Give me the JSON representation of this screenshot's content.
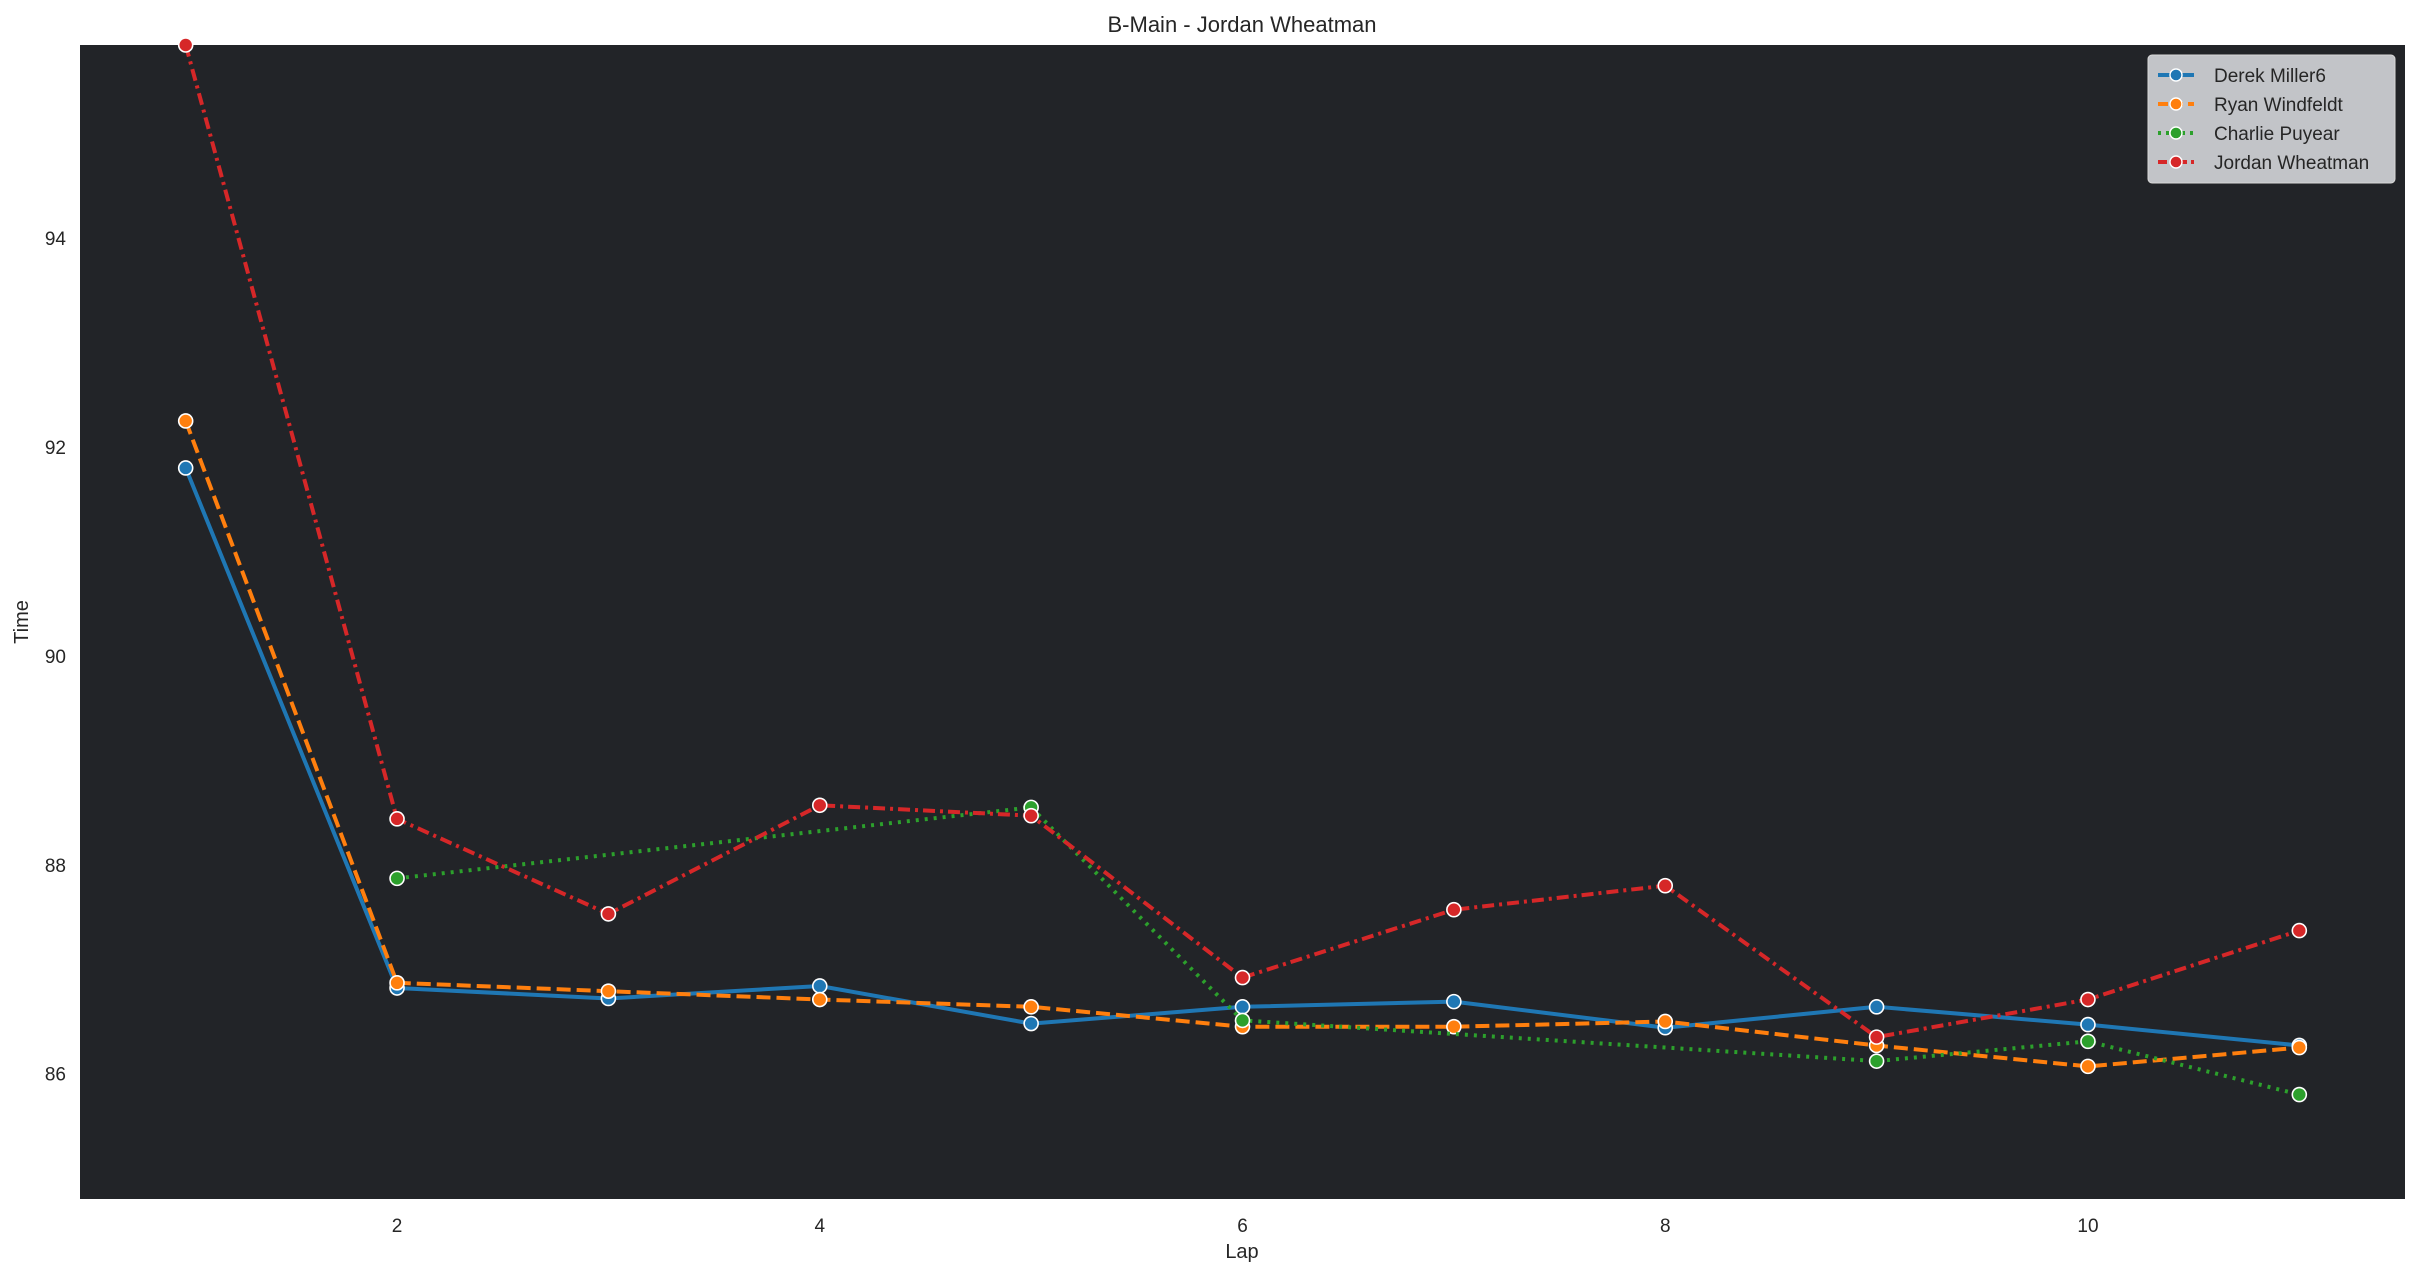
{
  "chart_data": {
    "type": "line",
    "title": "B-Main - Jordan Wheatman",
    "xlabel": "Lap",
    "ylabel": "Time",
    "xlim": [
      0.5,
      11.5
    ],
    "ylim": [
      84.8,
      95.85
    ],
    "xticks": [
      2,
      4,
      6,
      8,
      10
    ],
    "yticks": [
      86,
      88,
      90,
      92,
      94
    ],
    "grid": false,
    "legend_position": "top-right",
    "background_color": "#222428",
    "series": [
      {
        "name": "Derek Miller6",
        "color": "#1f77b4",
        "dash": "solid",
        "x": [
          1,
          2,
          3,
          4,
          5,
          6,
          7,
          8,
          9,
          10,
          11
        ],
        "y": [
          91.8,
          86.82,
          86.72,
          86.84,
          86.48,
          86.64,
          86.69,
          86.44,
          86.64,
          86.47,
          86.27
        ]
      },
      {
        "name": "Ryan Windfeldt",
        "color": "#ff7f0e",
        "dash": "dashed",
        "x": [
          1,
          2,
          3,
          4,
          5,
          6,
          7,
          8,
          9,
          10,
          11
        ],
        "y": [
          92.25,
          86.87,
          86.79,
          86.71,
          86.64,
          86.45,
          86.45,
          86.5,
          86.27,
          86.07,
          86.25
        ]
      },
      {
        "name": "Charlie Puyear",
        "color": "#2ca02c",
        "dash": "dotted",
        "x": [
          2,
          5,
          6,
          9,
          10,
          11
        ],
        "y": [
          87.87,
          88.55,
          86.51,
          86.12,
          86.31,
          85.8
        ]
      },
      {
        "name": "Jordan Wheatman",
        "color": "#d62728",
        "dash": "dashdot",
        "x": [
          1,
          2,
          3,
          4,
          5,
          6,
          7,
          8,
          9,
          10,
          11
        ],
        "y": [
          95.85,
          88.44,
          87.53,
          88.57,
          88.47,
          86.92,
          87.57,
          87.8,
          86.35,
          86.71,
          87.37
        ]
      }
    ]
  }
}
